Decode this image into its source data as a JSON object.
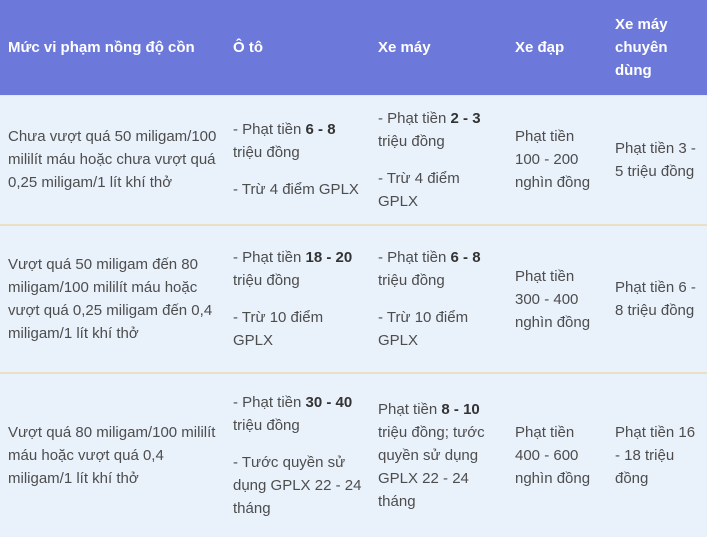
{
  "colors": {
    "header_bg": "#6c79da",
    "header_text": "#ffffff",
    "body_bg": "#e9f1fb",
    "separator": "#e9dfc5",
    "body_text": "#4d4d4d"
  },
  "table": {
    "headers": {
      "violation_level": "Mức vi phạm nồng độ cồn",
      "oto": "Ô tô",
      "xe_may": "Xe máy",
      "xe_dap": "Xe đạp",
      "xe_may_chuyen_dung": "Xe máy chuyên dùng"
    },
    "rows": [
      {
        "level": "Chưa vượt quá 50 miligam/100 mililít máu hoặc chưa vượt quá 0,25 miligam/1 lít khí thở",
        "oto": {
          "p1_pre": "- Phạt tiền ",
          "p1_bold": "6 - 8",
          "p1_post": " triệu đồng",
          "p2": "- Trừ 4 điểm GPLX"
        },
        "xe_may": {
          "p1_pre": "- Phạt tiền ",
          "p1_bold": "2 - 3",
          "p1_post": " triệu đồng",
          "p2": "- Trừ 4 điểm GPLX"
        },
        "xe_dap": "Phạt tiền 100 - 200 nghìn đồng",
        "xe_may_chuyen_dung": "Phạt tiền 3 - 5 triệu đồng"
      },
      {
        "level": "Vượt quá 50 miligam đến 80 miligam/100 mililít máu hoặc vượt quá 0,25 miligam đến 0,4 miligam/1 lít khí thở",
        "oto": {
          "p1_pre": "- Phạt tiền ",
          "p1_bold": "18 - 20",
          "p1_post": " triệu đồng",
          "p2": "- Trừ 10 điểm GPLX"
        },
        "xe_may": {
          "p1_pre": "- Phạt tiền ",
          "p1_bold": "6 - 8",
          "p1_post": " triệu đồng",
          "p2": "- Trừ 10 điểm GPLX"
        },
        "xe_dap": "Phạt tiền 300 - 400 nghìn đồng",
        "xe_may_chuyen_dung": "Phạt tiền 6 - 8 triệu đồng"
      },
      {
        "level": "Vượt quá 80 miligam/100 mililít máu hoặc vượt quá 0,4 miligam/1 lít khí thở",
        "oto": {
          "p1_pre": "- Phạt tiền ",
          "p1_bold": "30 - 40",
          "p1_post": " triệu đồng",
          "p2": "- Tước quyền sử dụng GPLX 22 - 24 tháng"
        },
        "xe_may": {
          "p1_pre": "Phạt tiền ",
          "p1_bold": "8 - 10",
          "p1_post": " triệu đồng; tước quyền sử dụng GPLX 22 - 24 tháng"
        },
        "xe_dap": "Phạt tiền 400 - 600 nghìn đồng",
        "xe_may_chuyen_dung": "Phạt tiền 16 - 18 triệu đồng"
      }
    ]
  }
}
